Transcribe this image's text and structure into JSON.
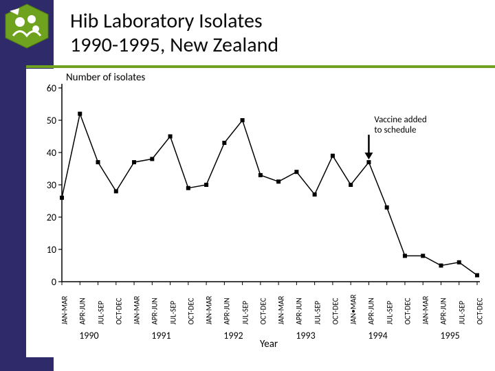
{
  "title": {
    "line1": "Hib Laboratory Isolates",
    "line2": "1990-1995, New Zealand",
    "fontsize": 30,
    "color": "#0b0b0b"
  },
  "accent_color": "#6fa21e",
  "sidebar_color": "#2f2b6b",
  "chart": {
    "type": "line",
    "y_axis_title": "Number of isolates",
    "x_axis_title": "Year",
    "ylim": [
      0,
      60
    ],
    "yticks": [
      0,
      10,
      20,
      30,
      40,
      50,
      60
    ],
    "x_period_labels": [
      "JAN-MAR",
      "APR-JUN",
      "JUL-SEP",
      "OCT-DEC",
      "JAN-MAR",
      "APR-JUN",
      "JUL-SEP",
      "OCT-DEC",
      "JAN-MAR",
      "APR-JUN",
      "JUL-SEP",
      "OCT-DEC",
      "JAN-MAR",
      "APR-JUN",
      "JUL-SEP",
      "OCT-DEC",
      "JAN•MAR",
      "APR-JUN",
      "JUL-SEP",
      "OCT-DEC",
      "JAN-MAR",
      "APR-JUN",
      "JUL-SEP",
      "OCT-DEC"
    ],
    "x_year_labels": [
      "1990",
      "1991",
      "1992",
      "1993",
      "1994",
      "1995"
    ],
    "values": [
      26,
      52,
      37,
      28,
      37,
      38,
      45,
      29,
      30,
      43,
      50,
      33,
      31,
      34,
      27,
      39,
      30,
      37,
      23,
      8,
      8,
      5,
      6,
      2
    ],
    "line_color": "#000000",
    "line_width": 1.5,
    "marker_size": 6,
    "marker_color": "#000000",
    "background_color": "#ffffff",
    "axis_color": "#000000",
    "annotation": {
      "text_line1": "Vaccine added",
      "text_line2": "to schedule",
      "at_index": 17
    }
  },
  "logo": {
    "bg": "#6fa21e",
    "fg": "#ffffff"
  }
}
